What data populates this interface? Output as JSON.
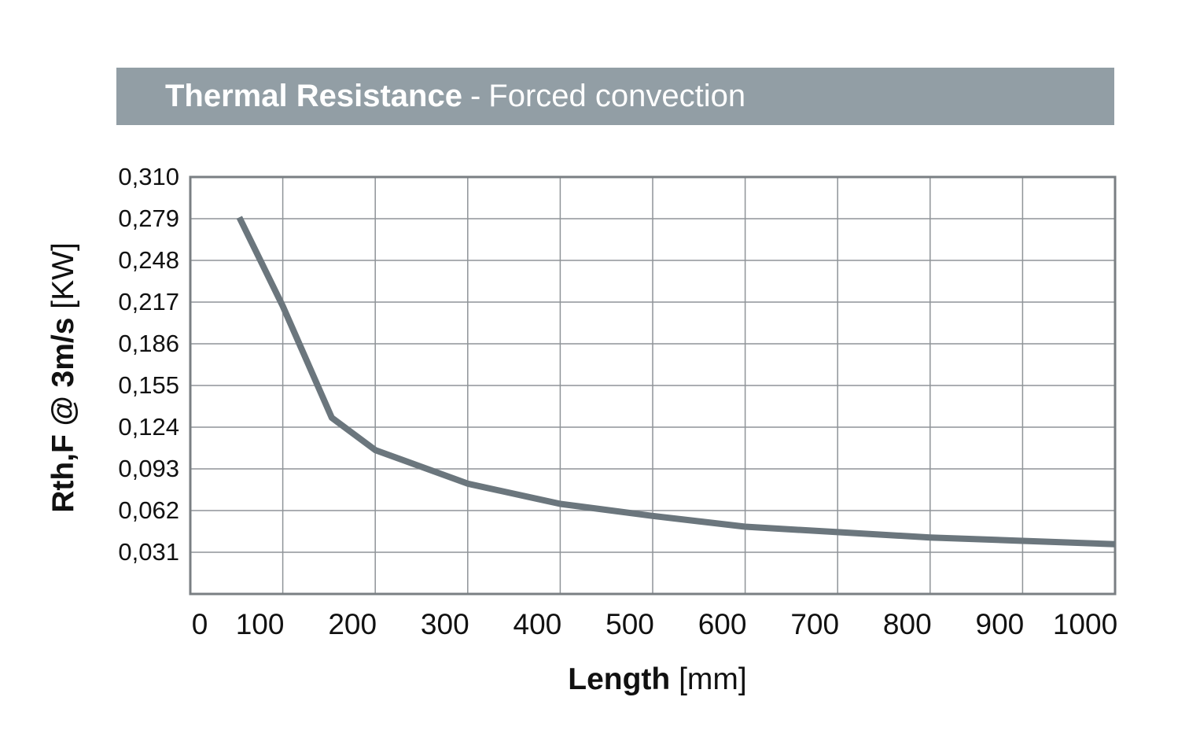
{
  "header": {
    "title_bold": "Thermal Resistance",
    "title_sep": "-",
    "title_rest": "Forced convection"
  },
  "axes": {
    "y_label_bold": "Rth,F @ 3m/s",
    "y_label_unit": "[KW]",
    "x_label_bold": "Length",
    "x_label_unit": "[mm]"
  },
  "chart_data": {
    "type": "line",
    "title": "Thermal Resistance - Forced convection",
    "xlabel": "Length [mm]",
    "ylabel": "Rth,F @ 3m/s [KW]",
    "xlim": [
      0,
      1000
    ],
    "ylim": [
      0,
      0.31
    ],
    "x_ticks": [
      0,
      100,
      200,
      300,
      400,
      500,
      600,
      700,
      800,
      900,
      1000
    ],
    "x_tick_labels": [
      "0",
      "100",
      "200",
      "300",
      "400",
      "500",
      "600",
      "700",
      "800",
      "900",
      "1000"
    ],
    "y_ticks": [
      0.031,
      0.062,
      0.093,
      0.124,
      0.155,
      0.186,
      0.217,
      0.248,
      0.279,
      0.31
    ],
    "y_tick_labels": [
      "0,031",
      "0,062",
      "0,093",
      "0,124",
      "0,155",
      "0,186",
      "0,217",
      "0,248",
      "0,279",
      "0,310"
    ],
    "grid": true,
    "series": [
      {
        "color": "#6b767d",
        "x": [
          53,
          100,
          153,
          200,
          300,
          400,
          500,
          600,
          700,
          800,
          900,
          1000
        ],
        "y": [
          0.28,
          0.214,
          0.131,
          0.107,
          0.082,
          0.067,
          0.058,
          0.05,
          0.046,
          0.042,
          0.0395,
          0.037
        ]
      }
    ]
  }
}
